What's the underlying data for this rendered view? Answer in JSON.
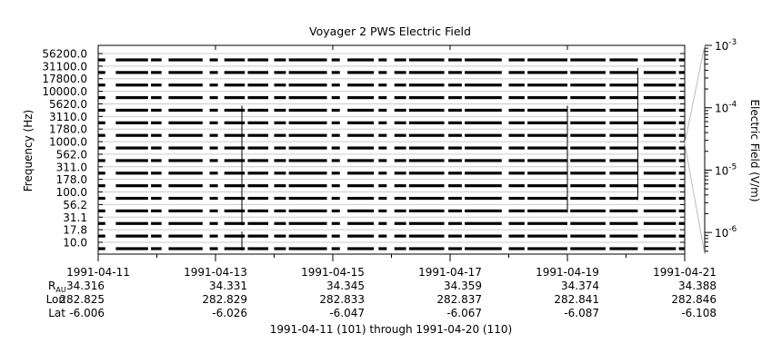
{
  "chart_data": {
    "type": "line",
    "title": "Voyager 2 PWS Electric Field",
    "ylabel": "Frequency (Hz)",
    "colorbar_label": "Electric Field (V/m)",
    "colorbar_scale": "log",
    "colorbar_range": [
      4.5e-07,
      0.001
    ],
    "colorbar_ticks": [
      {
        "value": 0.001,
        "base": "10",
        "exp": "-3"
      },
      {
        "value": 0.0001,
        "base": "10",
        "exp": "-4"
      },
      {
        "value": 1e-05,
        "base": "10",
        "exp": "-5"
      },
      {
        "value": 1e-06,
        "base": "10",
        "exp": "-6"
      }
    ],
    "frequency_channels": [
      "10.0",
      "17.8",
      "31.1",
      "56.2",
      "100.0",
      "178.0",
      "311.0",
      "562.0",
      "1000.0",
      "1780.0",
      "3110.0",
      "5620.0",
      "10000.0",
      "17800.0",
      "31100.0",
      "56200.0"
    ],
    "x_ticks": [
      "1991-04-11",
      "1991-04-13",
      "1991-04-15",
      "1991-04-17",
      "1991-04-19",
      "1991-04-21"
    ],
    "x_range_days": [
      0,
      10
    ],
    "ephemeris": {
      "labels": [
        "R",
        "Lon",
        "Lat"
      ],
      "r_subscript": "AU",
      "R": [
        "34.316",
        "34.331",
        "34.345",
        "34.359",
        "34.374",
        "34.388"
      ],
      "Lon": [
        "282.825",
        "282.829",
        "282.833",
        "282.837",
        "282.841",
        "282.846"
      ],
      "Lat": [
        "-6.006",
        "-6.026",
        "-6.047",
        "-6.067",
        "-6.087",
        "-6.108"
      ]
    },
    "footer": "1991-04-11 (101) through 1991-04-20 (110)",
    "data_segments_days": [
      [
        0.0,
        0.12
      ],
      [
        0.3,
        0.85
      ],
      [
        0.9,
        1.08
      ],
      [
        1.2,
        1.78
      ],
      [
        1.9,
        2.04
      ],
      [
        2.15,
        2.5
      ],
      [
        2.55,
        2.9
      ],
      [
        3.0,
        3.2
      ],
      [
        3.25,
        3.9
      ],
      [
        3.98,
        4.12
      ],
      [
        4.25,
        4.7
      ],
      [
        4.78,
        4.92
      ],
      [
        5.05,
        5.25
      ],
      [
        5.3,
        5.9
      ],
      [
        5.97,
        6.2
      ],
      [
        6.25,
        6.88
      ],
      [
        7.0,
        7.27
      ],
      [
        7.32,
        8.0
      ],
      [
        8.05,
        8.65
      ],
      [
        8.72,
        9.2
      ],
      [
        9.3,
        9.85
      ],
      [
        9.9,
        10.0
      ]
    ],
    "spikes": [
      {
        "day": 2.45,
        "from": "31.1",
        "to": "5620.0"
      },
      {
        "day": 8.0,
        "from": "56.2",
        "to": "5620.0"
      },
      {
        "day": 9.2,
        "from": "100.0",
        "to": "31100.0"
      },
      {
        "day": 2.45,
        "from": "10.0",
        "to": "17.8"
      }
    ]
  }
}
